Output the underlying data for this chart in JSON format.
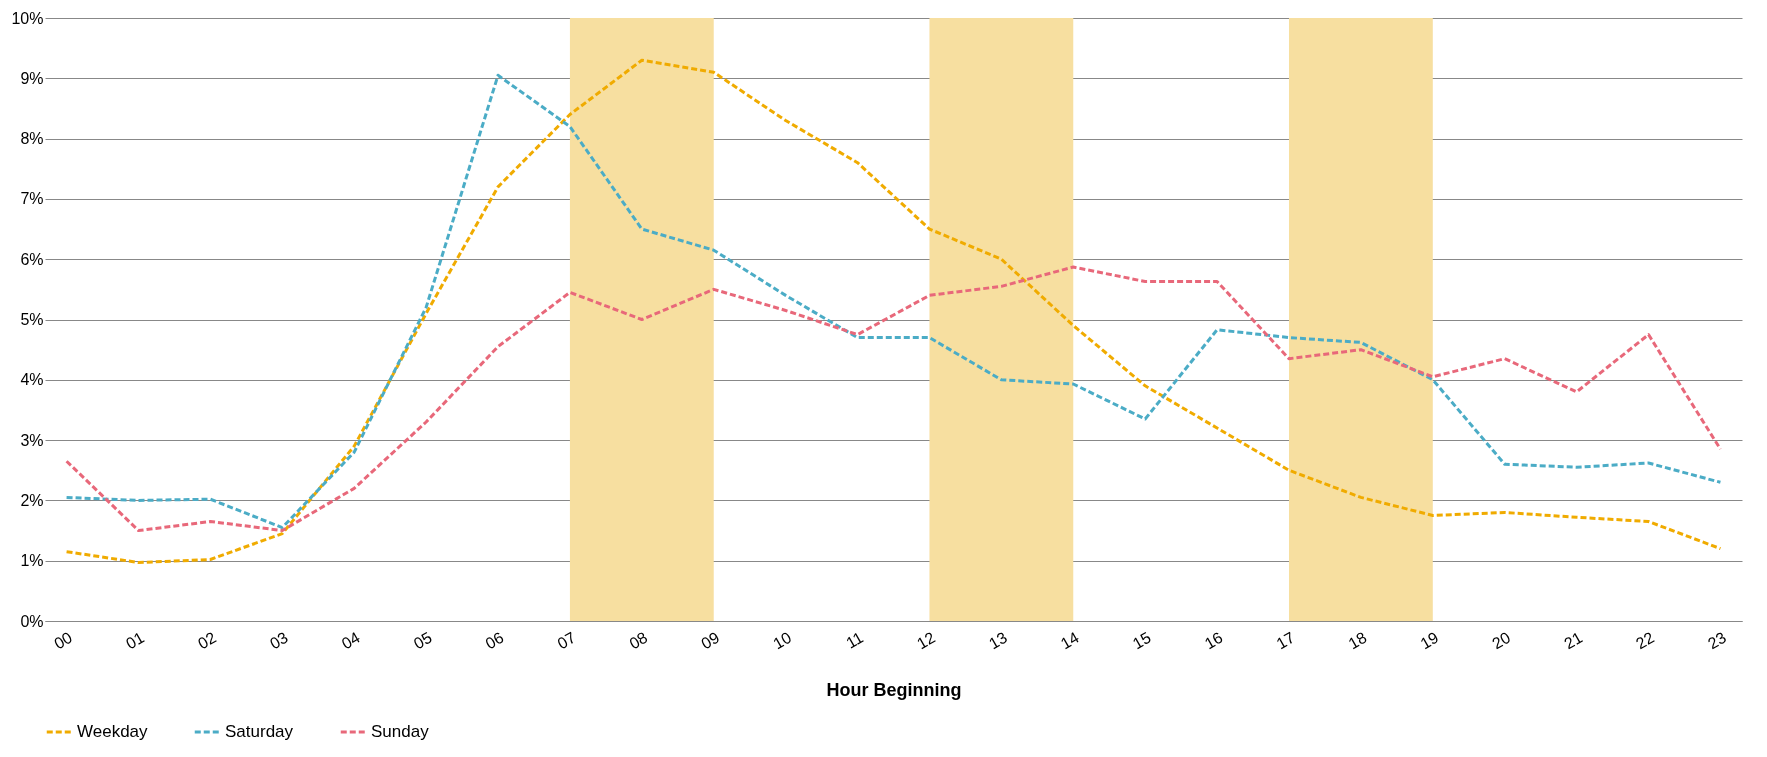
{
  "chart_data": {
    "type": "line",
    "xlabel": "Hour Beginning",
    "categories": [
      "00",
      "01",
      "02",
      "03",
      "04",
      "05",
      "06",
      "07",
      "08",
      "09",
      "10",
      "11",
      "12",
      "13",
      "14",
      "15",
      "16",
      "17",
      "18",
      "19",
      "20",
      "21",
      "22",
      "23"
    ],
    "series": [
      {
        "name": "Weekday",
        "color": "#f0ab00",
        "values": [
          1.15,
          0.97,
          1.02,
          1.45,
          2.9,
          5.1,
          7.2,
          8.4,
          9.3,
          9.1,
          8.3,
          7.6,
          6.5,
          6.0,
          4.9,
          3.9,
          3.2,
          2.5,
          2.05,
          1.75,
          1.8,
          1.72,
          1.65,
          1.2
        ]
      },
      {
        "name": "Saturday",
        "color": "#4bacc6",
        "values": [
          2.05,
          2.0,
          2.02,
          1.55,
          2.8,
          5.2,
          9.05,
          8.2,
          6.5,
          6.15,
          5.4,
          4.7,
          4.7,
          4.0,
          3.93,
          3.35,
          4.83,
          4.7,
          4.62,
          4.0,
          2.6,
          2.55,
          2.62,
          2.3
        ]
      },
      {
        "name": "Sunday",
        "color": "#e8687a",
        "values": [
          2.65,
          1.5,
          1.65,
          1.5,
          2.2,
          3.3,
          4.55,
          5.45,
          5.0,
          5.5,
          5.15,
          4.75,
          5.4,
          5.55,
          5.87,
          5.63,
          5.63,
          4.35,
          4.5,
          4.05,
          4.35,
          3.8,
          4.75,
          2.85
        ]
      }
    ],
    "ylim": [
      0,
      10
    ],
    "yticks": [
      {
        "value": 0,
        "label": "0%"
      },
      {
        "value": 1,
        "label": "1%"
      },
      {
        "value": 2,
        "label": "2%"
      },
      {
        "value": 3,
        "label": "3%"
      },
      {
        "value": 4,
        "label": "4%"
      },
      {
        "value": 5,
        "label": "5%"
      },
      {
        "value": 6,
        "label": "6%"
      },
      {
        "value": 7,
        "label": "7%"
      },
      {
        "value": 8,
        "label": "8%"
      },
      {
        "value": 9,
        "label": "9%"
      },
      {
        "value": 10,
        "label": "10%"
      }
    ],
    "bands": [
      {
        "axis": "x",
        "from": "07",
        "to": "09",
        "color": "#f7dfa0"
      },
      {
        "axis": "x",
        "from": "12",
        "to": "14",
        "color": "#f7dfa0"
      },
      {
        "axis": "x",
        "from": "17",
        "to": "19",
        "color": "#f7dfa0"
      }
    ],
    "grid": "y",
    "legend": "bottom",
    "marker": "none",
    "line_style": "dashed"
  }
}
